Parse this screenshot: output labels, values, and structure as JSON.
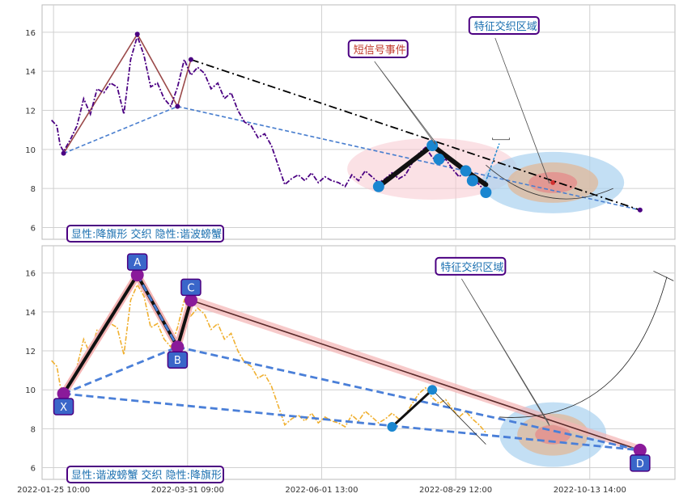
{
  "chart_data": [
    {
      "type": "line",
      "panel": "top",
      "ylim": [
        5.4,
        17.4
      ],
      "yticks": [
        6,
        8,
        10,
        12,
        14,
        16
      ],
      "grid": true,
      "price_color": "#4b0082",
      "price_line": [
        [
          0.2,
          11.5
        ],
        [
          1,
          11.2
        ],
        [
          1.5,
          10.2
        ],
        [
          2,
          9.9
        ],
        [
          3,
          10.5
        ],
        [
          4,
          11.2
        ],
        [
          5,
          12.6
        ],
        [
          6,
          11.8
        ],
        [
          7,
          13.1
        ],
        [
          8,
          12.9
        ],
        [
          9,
          13.4
        ],
        [
          10,
          13.2
        ],
        [
          11,
          11.8
        ],
        [
          12,
          14.6
        ],
        [
          13,
          15.8
        ],
        [
          14,
          14.8
        ],
        [
          15,
          13.2
        ],
        [
          16,
          13.4
        ],
        [
          17,
          12.6
        ],
        [
          18,
          12.2
        ],
        [
          19,
          13.2
        ],
        [
          20,
          14.6
        ],
        [
          21,
          13.8
        ],
        [
          22,
          14.2
        ],
        [
          23,
          13.9
        ],
        [
          24,
          13.1
        ],
        [
          25,
          13.4
        ],
        [
          26,
          12.6
        ],
        [
          27,
          12.9
        ],
        [
          28,
          12.0
        ],
        [
          29,
          11.4
        ],
        [
          30,
          11.2
        ],
        [
          31,
          10.6
        ],
        [
          32,
          10.8
        ],
        [
          33,
          10.2
        ],
        [
          34,
          9.2
        ],
        [
          35,
          8.2
        ],
        [
          36,
          8.5
        ],
        [
          37,
          8.7
        ],
        [
          38,
          8.4
        ],
        [
          39,
          8.8
        ],
        [
          40,
          8.3
        ],
        [
          41,
          8.6
        ],
        [
          42,
          8.4
        ],
        [
          43,
          8.3
        ],
        [
          44,
          8.1
        ],
        [
          45,
          8.7
        ],
        [
          46,
          8.4
        ],
        [
          47,
          8.9
        ],
        [
          48,
          8.6
        ],
        [
          49,
          8.3
        ],
        [
          50,
          8.5
        ],
        [
          51,
          8.8
        ],
        [
          52,
          8.5
        ],
        [
          53,
          8.7
        ],
        [
          54,
          9.3
        ],
        [
          55,
          9.8
        ],
        [
          56,
          10.1
        ],
        [
          57,
          9.6
        ],
        [
          58,
          9.3
        ],
        [
          59,
          9.5
        ],
        [
          60,
          9.0
        ],
        [
          61,
          8.6
        ],
        [
          62,
          8.9
        ],
        [
          63,
          8.5
        ],
        [
          64,
          8.2
        ],
        [
          65,
          7.8
        ]
      ],
      "pattern_lines": [
        {
          "color": "#9b4a4a",
          "points": [
            [
              2,
              9.8
            ],
            [
              13,
              15.9
            ],
            [
              19,
              12.2
            ],
            [
              21,
              14.6
            ]
          ]
        },
        {
          "color": "#4a7fcf",
          "dashed": true,
          "points": [
            [
              2,
              9.8
            ],
            [
              19,
              12.2
            ]
          ]
        },
        {
          "color": "#4a7fcf",
          "dashed": true,
          "points": [
            [
              19,
              12.2
            ],
            [
              88,
              6.9
            ]
          ]
        },
        {
          "color": "#000000",
          "dashdot": true,
          "points": [
            [
              21,
              14.6
            ],
            [
              88,
              6.9
            ]
          ]
        }
      ],
      "thick_segments": [
        [
          [
            49,
            8.1
          ],
          [
            57,
            10.2
          ]
        ],
        [
          [
            57,
            10.2
          ],
          [
            62,
            8.9
          ]
        ],
        [
          [
            62,
            8.9
          ],
          [
            65,
            8.2
          ]
        ]
      ],
      "pattern_points": [
        [
          49,
          8.1
        ],
        [
          57,
          10.2
        ],
        [
          58,
          9.5
        ],
        [
          62,
          8.9
        ],
        [
          63,
          8.4
        ],
        [
          65,
          7.8
        ]
      ],
      "zones": [
        {
          "cx": 75,
          "cy": 8.3,
          "type": "target"
        },
        {
          "cx": 57,
          "cy": 9.0,
          "type": "pink"
        }
      ],
      "annotations": [
        {
          "label": "短信号事件",
          "color": "#c0392b",
          "box_x": 45,
          "box_y": 15.0,
          "to_x": 57,
          "to_y": 10.3
        },
        {
          "label": "特征交织区域",
          "color": "#1a6fb0",
          "box_x": 63,
          "box_y": 16.2,
          "to_x": 74,
          "to_y": 8.3
        }
      ],
      "legend_text": "显性:降旗形 交织 隐性:谐波螃蟹"
    },
    {
      "type": "line",
      "panel": "bottom",
      "ylim": [
        5.4,
        17.4
      ],
      "yticks": [
        6,
        8,
        10,
        12,
        14,
        16
      ],
      "xticks": [
        "2022-01-25 10:00",
        "2022-03-31 09:00",
        "2022-06-01 13:00",
        "2022-08-29 12:00",
        "2022-10-13 14:00"
      ],
      "grid": true,
      "price_color": "#f0b030",
      "price_line": [
        [
          0.2,
          11.5
        ],
        [
          1,
          11.2
        ],
        [
          1.5,
          10.2
        ],
        [
          2,
          9.9
        ],
        [
          3,
          10.5
        ],
        [
          4,
          11.2
        ],
        [
          5,
          12.6
        ],
        [
          6,
          11.8
        ],
        [
          7,
          13.1
        ],
        [
          8,
          12.9
        ],
        [
          9,
          13.4
        ],
        [
          10,
          13.2
        ],
        [
          11,
          11.8
        ],
        [
          12,
          14.6
        ],
        [
          13,
          15.4
        ],
        [
          14,
          14.8
        ],
        [
          15,
          13.2
        ],
        [
          16,
          13.4
        ],
        [
          17,
          12.6
        ],
        [
          18,
          12.2
        ],
        [
          19,
          13.2
        ],
        [
          20,
          14.6
        ],
        [
          21,
          13.8
        ],
        [
          22,
          14.2
        ],
        [
          23,
          13.9
        ],
        [
          24,
          13.1
        ],
        [
          25,
          13.4
        ],
        [
          26,
          12.6
        ],
        [
          27,
          12.9
        ],
        [
          28,
          12.0
        ],
        [
          29,
          11.4
        ],
        [
          30,
          11.2
        ],
        [
          31,
          10.6
        ],
        [
          32,
          10.8
        ],
        [
          33,
          10.2
        ],
        [
          34,
          9.2
        ],
        [
          35,
          8.2
        ],
        [
          36,
          8.5
        ],
        [
          37,
          8.7
        ],
        [
          38,
          8.4
        ],
        [
          39,
          8.8
        ],
        [
          40,
          8.3
        ],
        [
          41,
          8.6
        ],
        [
          42,
          8.4
        ],
        [
          43,
          8.3
        ],
        [
          44,
          8.1
        ],
        [
          45,
          8.7
        ],
        [
          46,
          8.4
        ],
        [
          47,
          8.9
        ],
        [
          48,
          8.6
        ],
        [
          49,
          8.3
        ],
        [
          50,
          8.5
        ],
        [
          51,
          8.8
        ],
        [
          52,
          8.5
        ],
        [
          53,
          8.7
        ],
        [
          54,
          9.3
        ],
        [
          55,
          9.8
        ],
        [
          56,
          10.1
        ],
        [
          57,
          9.6
        ],
        [
          58,
          9.3
        ],
        [
          59,
          9.5
        ],
        [
          60,
          9.0
        ],
        [
          61,
          8.6
        ],
        [
          62,
          8.9
        ],
        [
          63,
          8.5
        ],
        [
          64,
          8.2
        ],
        [
          65,
          7.8
        ]
      ],
      "xabcd": {
        "X": [
          2,
          9.8
        ],
        "A": [
          13,
          15.9
        ],
        "B": [
          19,
          12.2
        ],
        "C": [
          21,
          14.6
        ],
        "D": [
          88,
          6.9
        ]
      },
      "pattern_points": [
        [
          51,
          8.1
        ],
        [
          57,
          10.0
        ]
      ],
      "zone": {
        "cx": 75,
        "cy": 7.7
      },
      "annotation": {
        "label": "特征交织区域",
        "color": "#1a6fb0",
        "box_x": 58,
        "box_y": 16.2,
        "to_x": 74,
        "to_y": 8.2
      },
      "legend_text": "显性:谐波螃蟹 交织 隐性:降旗形"
    }
  ],
  "labels": {
    "top_annotation_1": "短信号事件",
    "top_annotation_2": "特征交织区域",
    "top_legend": "显性:降旗形 交织 隐性:谐波螃蟹",
    "bottom_annotation": "特征交织区域",
    "bottom_legend": "显性:谐波螃蟹 交织 隐性:降旗形",
    "point_X": "X",
    "point_A": "A",
    "point_B": "B",
    "point_C": "C",
    "point_D": "D"
  },
  "colors": {
    "grid": "#cccccc",
    "frame": "#bbbbbb",
    "label_box_border": "#4b0082",
    "point_badge": "#3a66c9",
    "pattern_marker": "#1a86d0",
    "xabcd_marker": "#8a1a9a"
  }
}
